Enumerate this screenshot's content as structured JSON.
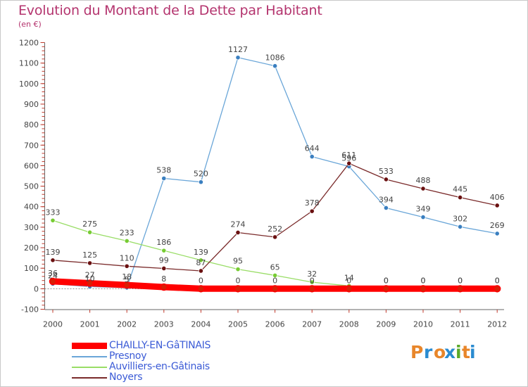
{
  "chart_data": {
    "type": "line",
    "title": "Evolution du Montant de la Dette par Habitant",
    "unit_label": "(en €)",
    "xlabel": "",
    "ylabel": "",
    "categories": [
      "2000",
      "2001",
      "2002",
      "2003",
      "2004",
      "2005",
      "2006",
      "2007",
      "2008",
      "2009",
      "2010",
      "2011",
      "2012"
    ],
    "ylim": [
      -100,
      1200
    ],
    "yticks": [
      "-100",
      "0",
      "100",
      "200",
      "300",
      "400",
      "500",
      "600",
      "700",
      "800",
      "900",
      "1000",
      "1100",
      "1200"
    ],
    "grid": false,
    "legend_position": "bottom-left",
    "series": [
      {
        "name": "CHAILLY-EN-GâTINAIS",
        "color": "#ff0000",
        "marker": "#d81e05",
        "values": [
          36,
          27,
          18,
          8,
          0,
          0,
          0,
          0,
          0,
          0,
          0,
          0,
          0
        ],
        "labels": [
          "36",
          "27",
          "18",
          "8",
          "0",
          "0",
          "0",
          "0",
          "0",
          "0",
          "0",
          "0",
          "0"
        ]
      },
      {
        "name": "Presnoy",
        "color": "#6aa6d8",
        "marker": "#3a7fc0",
        "values": [
          24,
          10,
          5,
          538,
          520,
          1127,
          1086,
          644,
          596,
          394,
          349,
          302,
          269
        ],
        "labels": [
          "24",
          "10",
          "5",
          "538",
          "520",
          "1127",
          "1086",
          "644",
          "596",
          "394",
          "349",
          "302",
          "269"
        ]
      },
      {
        "name": "Auvilliers-en-Gâtinais",
        "color": "#99dd66",
        "marker": "#77cc33",
        "values": [
          333,
          275,
          233,
          186,
          139,
          95,
          65,
          32,
          14,
          0,
          0,
          0,
          0
        ],
        "labels": [
          "333",
          "275",
          "233",
          "186",
          "139",
          "95",
          "65",
          "32",
          "14",
          "0",
          "0",
          "0",
          "0"
        ]
      },
      {
        "name": "Noyers",
        "color": "#7a2a2a",
        "marker": "#6a1010",
        "values": [
          139,
          125,
          110,
          99,
          87,
          274,
          252,
          378,
          611,
          533,
          488,
          445,
          406
        ],
        "labels": [
          "139",
          "125",
          "110",
          "99",
          "87",
          "274",
          "252",
          "378",
          "611",
          "533",
          "488",
          "445",
          "406"
        ]
      }
    ]
  },
  "legend": {
    "items": [
      {
        "label": "CHAILLY-EN-GâTINAIS"
      },
      {
        "label": "Presnoy"
      },
      {
        "label": "Auvilliers-en-Gâtinais"
      },
      {
        "label": "Noyers"
      }
    ]
  },
  "logo": {
    "text": "Proxiti",
    "colors": [
      "#e8862a",
      "#2a8bd0",
      "#e8862a",
      "#2a8bd0",
      "#5aaa2a",
      "#e8862a",
      "#2a8bd0"
    ]
  }
}
